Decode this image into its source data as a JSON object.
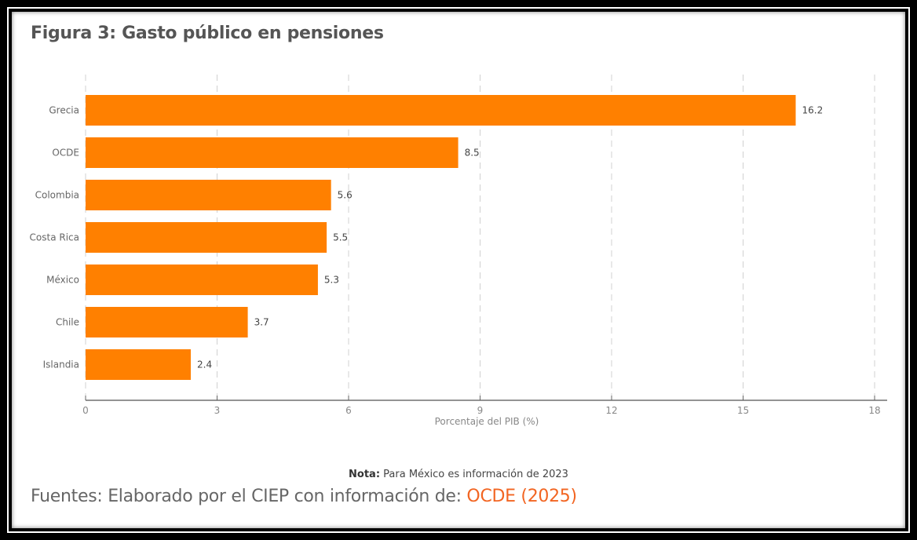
{
  "title": "Figura 3: Gasto público en pensiones",
  "note": {
    "label": "Nota:",
    "text": "Para México es información de 2023"
  },
  "source": {
    "text": "Fuentes: Elaborado por el CIEP con información de:",
    "link": "OCDE (2025)"
  },
  "colors": {
    "bar": "#ff8000",
    "link": "#f26522"
  },
  "chart_data": {
    "type": "bar",
    "orientation": "horizontal",
    "categories": [
      "Grecia",
      "OCDE",
      "Colombia",
      "Costa Rica",
      "México",
      "Chile",
      "Islandia"
    ],
    "values": [
      16.2,
      8.5,
      5.6,
      5.5,
      5.3,
      3.7,
      2.4
    ],
    "xlabel": "Porcentaje del PIB (%)",
    "xlim": [
      0,
      18
    ],
    "xticks": [
      0,
      3,
      6,
      9,
      12,
      15,
      18
    ],
    "grid": "vertical dashed"
  }
}
